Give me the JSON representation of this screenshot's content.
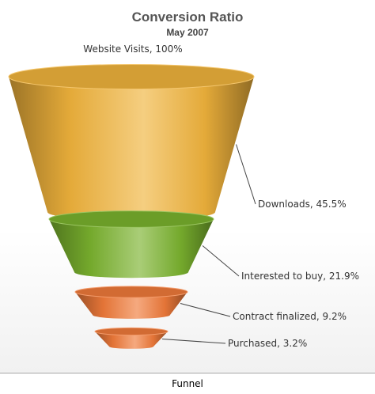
{
  "footer": {
    "caption": "Funnel"
  },
  "chart_data": {
    "type": "funnel",
    "title": "Conversion Ratio",
    "subtitle": "May 2007",
    "stages": [
      {
        "label": "Website Visits, 100%",
        "name": "Website Visits",
        "percent": 100,
        "color": "#a8c8e4"
      },
      {
        "label": "Downloads, 45.5%",
        "name": "Downloads",
        "percent": 45.5,
        "color": "#f0b33c"
      },
      {
        "label": "Interested to buy, 21.9%",
        "name": "Interested to buy",
        "percent": 21.9,
        "color": "#7ab22e"
      },
      {
        "label": "Contract finalized, 9.2%",
        "name": "Contract finalized",
        "percent": 9.2,
        "color": "#ef7a3a"
      },
      {
        "label": "Purchased, 3.2%",
        "name": "Purchased",
        "percent": 3.2
      }
    ]
  }
}
